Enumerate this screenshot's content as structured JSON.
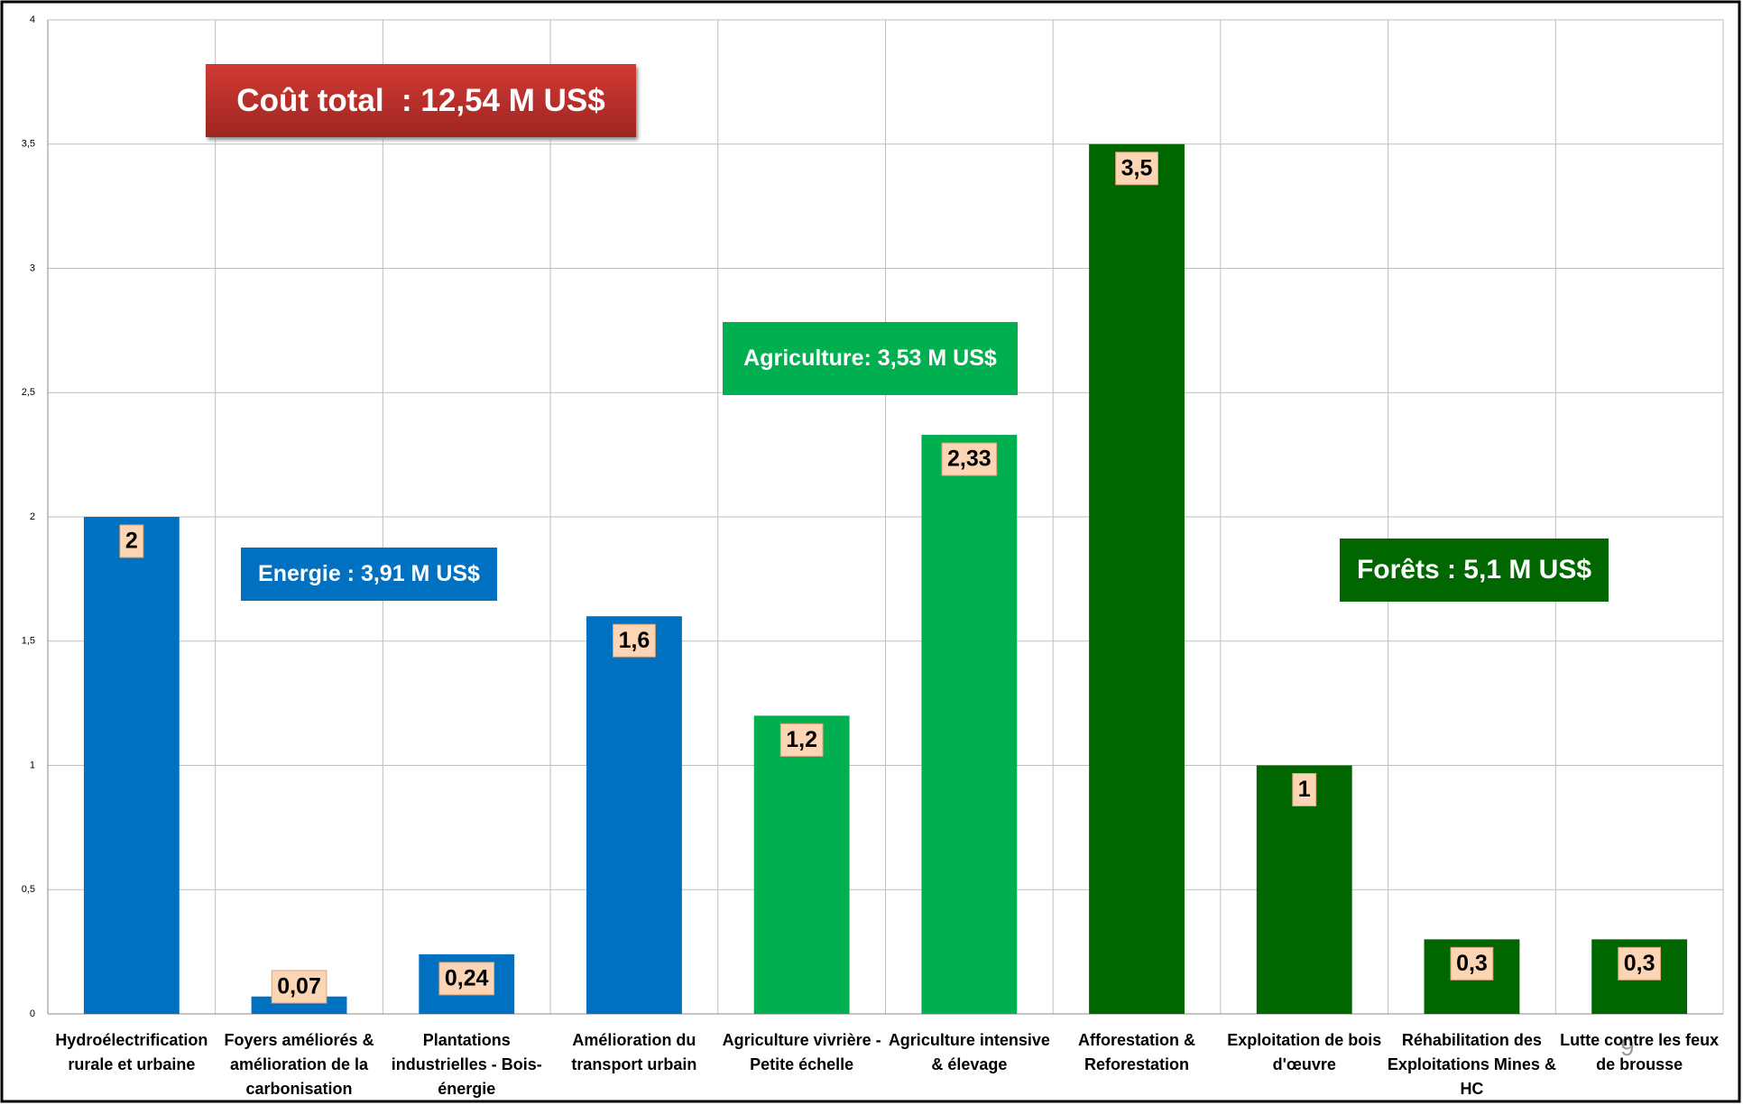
{
  "chart_data": {
    "type": "bar",
    "categories": [
      "Hydroélectrification rurale et urbaine",
      "Foyers améliorés & amélioration de la carbonisation",
      "Plantations industrielles - Bois-énergie",
      "Amélioration du transport urbain",
      "Agriculture vivrière -Petite échelle",
      "Agriculture intensive & élevage",
      "Afforestation & Reforestation",
      "Exploitation de bois d'œuvre",
      "Réhabilitation des Exploitations Mines & HC",
      "Lutte contre les feux de brousse"
    ],
    "values": [
      2,
      0.07,
      0.24,
      1.6,
      1.2,
      2.33,
      3.5,
      1,
      0.3,
      0.3
    ],
    "value_labels": [
      "2",
      "0,07",
      "0,24",
      "1,6",
      "1,2",
      "2,33",
      "3,5",
      "1",
      "0,3",
      "0,3"
    ],
    "colors": [
      "#0070c0",
      "#0070c0",
      "#0070c0",
      "#0070c0",
      "#00b050",
      "#00b050",
      "#006600",
      "#006600",
      "#006600",
      "#006600"
    ],
    "ylim": [
      0,
      4
    ],
    "yticks": [
      0,
      {
        "value": 0.5,
        "label": "0,5"
      },
      1,
      {
        "value": 1.5,
        "label": "1,5"
      },
      2,
      {
        "value": 2.5,
        "label": "2,5"
      },
      3,
      {
        "value": 3.5,
        "label": "3,5"
      },
      4
    ],
    "grid": true,
    "annotations": [
      "Coût total  : 12,54 M US$",
      "Energie : 3,91 M US$",
      "Agriculture: 3,53 M US$",
      "Forêts : 5,1 M US$"
    ],
    "page_number": "9"
  }
}
